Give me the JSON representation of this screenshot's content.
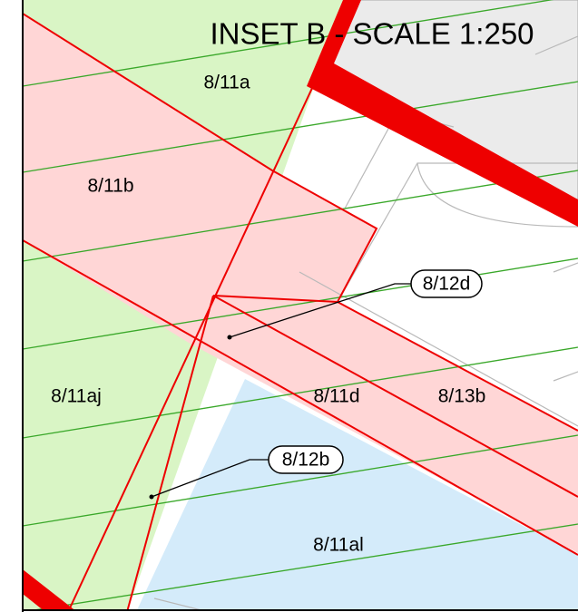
{
  "title": "INSET B - SCALE 1:250",
  "parcels": [
    "8/11a",
    "8/11b",
    "8/11aj",
    "8/11d",
    "8/13b",
    "8/11al"
  ],
  "callouts": [
    "8/12d",
    "8/12b"
  ]
}
